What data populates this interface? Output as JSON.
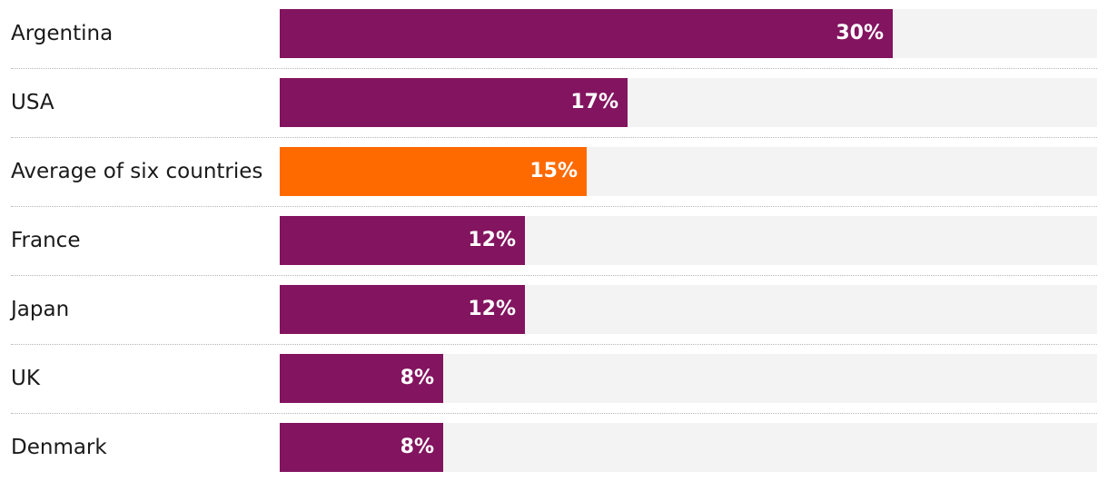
{
  "colors": {
    "country_bar": "#83145f",
    "average_bar": "#ff6a00",
    "track": "#f3f3f3",
    "value_text": "#ffffff"
  },
  "chart_data": {
    "type": "bar",
    "orientation": "horizontal",
    "categories": [
      "Argentina",
      "USA",
      "Average of six countries",
      "France",
      "Japan",
      "UK",
      "Denmark"
    ],
    "values": [
      30,
      17,
      15,
      12,
      12,
      8,
      8
    ],
    "value_labels": [
      "30%",
      "17%",
      "15%",
      "12%",
      "12%",
      "8%",
      "8%"
    ],
    "highlight": "Average of six countries",
    "unit": "%",
    "xlim": [
      0,
      40
    ],
    "grid": false,
    "legend": "none"
  }
}
